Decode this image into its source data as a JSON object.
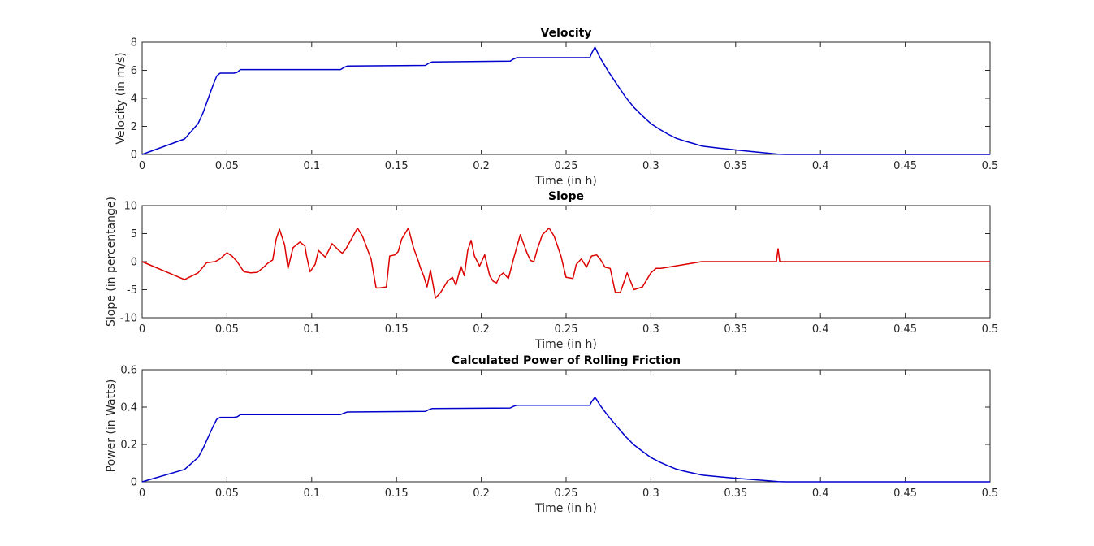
{
  "chart_data": [
    {
      "type": "line",
      "title": "Velocity",
      "xlabel": "Time (in h)",
      "ylabel": "Velocity (in m/s)",
      "xlim": [
        0,
        0.5
      ],
      "ylim": [
        0,
        8
      ],
      "xticks": [
        "0",
        "0.05",
        "0.1",
        "0.15",
        "0.2",
        "0.25",
        "0.3",
        "0.35",
        "0.4",
        "0.45",
        "0.5"
      ],
      "yticks": [
        "0",
        "2",
        "4",
        "6",
        "8"
      ],
      "grid": false,
      "color": "#0000cc",
      "series": [
        {
          "x": [
            0,
            0.025,
            0.033,
            0.036,
            0.039,
            0.042,
            0.044,
            0.046,
            0.05,
            0.054,
            0.056,
            0.058,
            0.08,
            0.117,
            0.119,
            0.121,
            0.167,
            0.169,
            0.171,
            0.217,
            0.219,
            0.221,
            0.264,
            0.265,
            0.267,
            0.268,
            0.27,
            0.275,
            0.28,
            0.285,
            0.29,
            0.295,
            0.3,
            0.305,
            0.31,
            0.315,
            0.32,
            0.325,
            0.33,
            0.34,
            0.35,
            0.36,
            0.37,
            0.375,
            0.38,
            0.4,
            0.45,
            0.5
          ],
          "y": [
            0,
            1.1,
            2.2,
            3.0,
            4.0,
            5.0,
            5.6,
            5.8,
            5.8,
            5.8,
            5.85,
            6.05,
            6.05,
            6.05,
            6.2,
            6.3,
            6.35,
            6.5,
            6.6,
            6.65,
            6.8,
            6.9,
            6.9,
            7.2,
            7.65,
            7.4,
            6.9,
            5.9,
            5.0,
            4.1,
            3.35,
            2.75,
            2.2,
            1.8,
            1.45,
            1.15,
            0.95,
            0.78,
            0.6,
            0.45,
            0.32,
            0.2,
            0.08,
            0.02,
            0,
            0,
            0,
            0
          ]
        }
      ]
    },
    {
      "type": "line",
      "title": "Slope",
      "xlabel": "Time (in h)",
      "ylabel": "Slope (in percentange)",
      "xlim": [
        0,
        0.5
      ],
      "ylim": [
        -10,
        10
      ],
      "xticks": [
        "0",
        "0.05",
        "0.1",
        "0.15",
        "0.2",
        "0.25",
        "0.3",
        "0.35",
        "0.4",
        "0.45",
        "0.5"
      ],
      "yticks": [
        "-10",
        "-5",
        "0",
        "5",
        "10"
      ],
      "grid": false,
      "color": "#dd0000",
      "series": [
        {
          "x": [
            0,
            0.025,
            0.033,
            0.038,
            0.043,
            0.046,
            0.05,
            0.053,
            0.056,
            0.06,
            0.064,
            0.068,
            0.072,
            0.074,
            0.077,
            0.079,
            0.081,
            0.084,
            0.086,
            0.089,
            0.093,
            0.096,
            0.097,
            0.099,
            0.102,
            0.104,
            0.108,
            0.112,
            0.116,
            0.118,
            0.12,
            0.123,
            0.127,
            0.13,
            0.135,
            0.138,
            0.14,
            0.144,
            0.146,
            0.149,
            0.151,
            0.153,
            0.157,
            0.16,
            0.163,
            0.164,
            0.166,
            0.168,
            0.17,
            0.173,
            0.176,
            0.178,
            0.18,
            0.183,
            0.185,
            0.188,
            0.19,
            0.192,
            0.194,
            0.196,
            0.199,
            0.202,
            0.205,
            0.207,
            0.209,
            0.211,
            0.213,
            0.216,
            0.219,
            0.223,
            0.227,
            0.229,
            0.231,
            0.233,
            0.236,
            0.24,
            0.243,
            0.247,
            0.25,
            0.254,
            0.256,
            0.259,
            0.262,
            0.265,
            0.268,
            0.27,
            0.273,
            0.276,
            0.279,
            0.282,
            0.286,
            0.29,
            0.295,
            0.3,
            0.303,
            0.306,
            0.33,
            0.374,
            0.375,
            0.376,
            0.38,
            0.5
          ],
          "y": [
            0,
            -3.2,
            -2,
            -0.2,
            0,
            0.5,
            1.6,
            1.0,
            0,
            -1.8,
            -2.0,
            -1.9,
            -0.9,
            -0.3,
            0.3,
            4.0,
            5.8,
            3.0,
            -1.2,
            2.5,
            3.5,
            2.8,
            1.0,
            -1.8,
            -0.5,
            2.0,
            0.8,
            3.2,
            2.0,
            1.5,
            2.2,
            3.8,
            6.0,
            4.5,
            0.5,
            -4.7,
            -4.7,
            -4.5,
            1.0,
            1.2,
            1.8,
            4.0,
            6.0,
            2.5,
            0,
            -1.0,
            -2.5,
            -4.5,
            -1.5,
            -6.5,
            -5.5,
            -4.5,
            -3.5,
            -2.8,
            -4.2,
            -0.8,
            -2.5,
            2.0,
            3.8,
            1.0,
            -0.8,
            1.2,
            -2.5,
            -3.5,
            -3.8,
            -2.5,
            -2.0,
            -3.0,
            0.5,
            4.8,
            1.5,
            0.2,
            0,
            2.2,
            4.8,
            6.0,
            4.5,
            1.0,
            -2.8,
            -3.0,
            -0.5,
            0.5,
            -1.0,
            1.0,
            1.2,
            0.5,
            -1.0,
            -1.2,
            -5.5,
            -5.5,
            -2.0,
            -5.0,
            -4.5,
            -2.0,
            -1.2,
            -1.2,
            0,
            0,
            2.3,
            0,
            0,
            0
          ]
        }
      ]
    },
    {
      "type": "line",
      "title": "Calculated Power of Rolling Friction",
      "xlabel": "Time (in h)",
      "ylabel": "Power (in Watts)",
      "xlim": [
        0,
        0.5
      ],
      "ylim": [
        0,
        0.6
      ],
      "xticks": [
        "0",
        "0.05",
        "0.1",
        "0.15",
        "0.2",
        "0.25",
        "0.3",
        "0.35",
        "0.4",
        "0.45",
        "0.5"
      ],
      "yticks": [
        "0",
        "0.2",
        "0.4",
        "0.6"
      ],
      "grid": false,
      "color": "#0000cc",
      "series": [
        {
          "x": [
            0,
            0.025,
            0.033,
            0.036,
            0.039,
            0.042,
            0.044,
            0.046,
            0.05,
            0.054,
            0.056,
            0.058,
            0.08,
            0.117,
            0.119,
            0.121,
            0.167,
            0.169,
            0.171,
            0.217,
            0.219,
            0.221,
            0.264,
            0.265,
            0.267,
            0.268,
            0.27,
            0.275,
            0.28,
            0.285,
            0.29,
            0.295,
            0.3,
            0.305,
            0.31,
            0.315,
            0.32,
            0.325,
            0.33,
            0.34,
            0.35,
            0.36,
            0.37,
            0.375,
            0.38,
            0.4,
            0.45,
            0.5
          ],
          "y": [
            0,
            0.066,
            0.13,
            0.18,
            0.24,
            0.3,
            0.335,
            0.345,
            0.345,
            0.345,
            0.348,
            0.36,
            0.36,
            0.36,
            0.368,
            0.374,
            0.377,
            0.386,
            0.392,
            0.395,
            0.404,
            0.41,
            0.41,
            0.428,
            0.452,
            0.44,
            0.41,
            0.35,
            0.297,
            0.243,
            0.198,
            0.163,
            0.13,
            0.106,
            0.086,
            0.068,
            0.056,
            0.046,
            0.036,
            0.027,
            0.019,
            0.012,
            0.005,
            0.001,
            0,
            0,
            0,
            0
          ]
        }
      ]
    }
  ]
}
